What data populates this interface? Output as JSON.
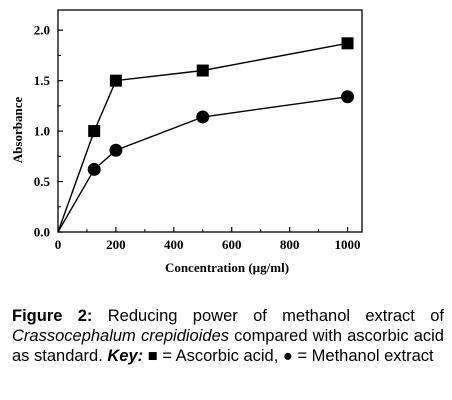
{
  "chart_data": {
    "type": "line",
    "xlabel": "Concentration (µg/ml)",
    "ylabel": "Absorbance",
    "xlim": [
      0,
      1050
    ],
    "ylim": [
      0,
      2.2
    ],
    "x_ticks": [
      "0",
      "200",
      "400",
      "600",
      "800",
      "1000"
    ],
    "y_ticks": [
      "0.0",
      "0.5",
      "1.0",
      "1.5",
      "2.0"
    ],
    "series": [
      {
        "name": "Ascorbic acid",
        "marker": "square",
        "x": [
          0,
          125,
          200,
          500,
          1000
        ],
        "y": [
          0.0,
          1.0,
          1.5,
          1.6,
          1.87
        ]
      },
      {
        "name": "Methanol extract",
        "marker": "circle",
        "x": [
          0,
          125,
          200,
          500,
          1000
        ],
        "y": [
          0.0,
          0.62,
          0.81,
          1.14,
          1.34
        ]
      }
    ],
    "grid": false,
    "color": "#000000"
  },
  "caption": {
    "figure_label": "Figure 2:",
    "text_1": " Reducing power of methanol extract of ",
    "species": "Crassocephalum crepidioides",
    "text_2": " compared with ascorbic acid as standard. ",
    "key_label": "Key:",
    "key_text": " ■ = Ascorbic acid, ● = Methanol extract"
  }
}
